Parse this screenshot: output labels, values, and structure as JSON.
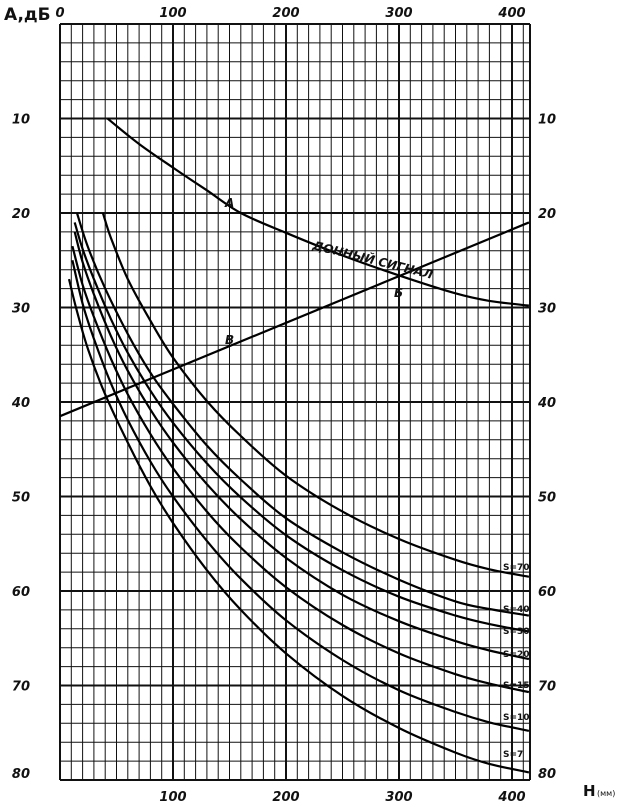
{
  "chart_data": {
    "type": "line",
    "ylabel": "A,дБ",
    "xlabel": "H",
    "xlabel_unit": "(мм)",
    "xlim": [
      0,
      400
    ],
    "ylim": [
      0,
      80
    ],
    "y_inverted": true,
    "grid": true,
    "top_ticks": [
      "0",
      "100",
      "200",
      "300",
      "400"
    ],
    "bottom_ticks": [
      "100",
      "200",
      "300",
      "400"
    ],
    "left_ticks": [
      "10",
      "20",
      "30",
      "40",
      "50",
      "60",
      "70",
      "80"
    ],
    "right_ticks": [
      "10",
      "20",
      "30",
      "40",
      "50",
      "60",
      "70",
      "80"
    ],
    "reference_curve": {
      "label_A": "A",
      "label_B": "Б",
      "text": "ДОННЫЙ СИГНАЛ",
      "x": [
        42,
        70,
        100,
        130,
        160,
        200,
        250,
        300,
        350,
        380,
        415
      ],
      "y": [
        10,
        12.7,
        15.2,
        17.6,
        20,
        22.1,
        24.5,
        26.6,
        28.5,
        29.3,
        29.8
      ]
    },
    "straight_line": {
      "label": "В",
      "x": [
        0,
        415
      ],
      "y": [
        41.5,
        21
      ]
    },
    "series": [
      {
        "name": "S=70",
        "x": [
          38,
          45,
          60,
          80,
          100,
          130,
          160,
          200,
          250,
          300,
          350,
          380,
          415
        ],
        "y": [
          20,
          22.6,
          27,
          31.4,
          35.3,
          39.9,
          43.6,
          47.8,
          51.6,
          54.5,
          56.7,
          57.7,
          58.5
        ]
      },
      {
        "name": "S=40",
        "x": [
          15,
          25,
          40,
          60,
          80,
          100,
          130,
          160,
          200,
          250,
          300,
          350,
          380,
          415
        ],
        "y": [
          20,
          23.7,
          28,
          32.8,
          36.9,
          40.2,
          44.6,
          48.2,
          52.3,
          55.9,
          58.8,
          61.1,
          61.9,
          62.6
        ]
      },
      {
        "name": "S=30",
        "x": [
          13,
          20,
          30,
          45,
          60,
          80,
          100,
          130,
          160,
          200,
          250,
          300,
          350,
          380,
          415
        ],
        "y": [
          21,
          23.8,
          27,
          31.2,
          34.8,
          38.8,
          42.2,
          46.5,
          50.1,
          54.1,
          57.8,
          60.6,
          62.6,
          63.5,
          64.3
        ]
      },
      {
        "name": "S=20",
        "x": [
          13,
          20,
          30,
          45,
          60,
          80,
          100,
          130,
          160,
          200,
          250,
          300,
          350,
          380,
          415
        ],
        "y": [
          22,
          25.2,
          28.6,
          33,
          36.7,
          40.8,
          44.3,
          48.7,
          52.4,
          56.5,
          60.4,
          63.2,
          65.3,
          66.3,
          67.2
        ]
      },
      {
        "name": "S=15",
        "x": [
          11,
          20,
          30,
          45,
          60,
          80,
          100,
          130,
          160,
          200,
          250,
          300,
          350,
          380,
          415
        ],
        "y": [
          23.5,
          27.6,
          31,
          35.4,
          39.2,
          43.4,
          47,
          51.6,
          55.4,
          59.6,
          63.6,
          66.6,
          68.8,
          69.8,
          70.7
        ]
      },
      {
        "name": "S=10",
        "x": [
          11,
          20,
          30,
          45,
          60,
          80,
          100,
          130,
          160,
          200,
          250,
          300,
          350,
          380,
          415
        ],
        "y": [
          25,
          29.6,
          33.3,
          38,
          41.9,
          46.3,
          50,
          54.7,
          58.7,
          63.1,
          67.3,
          70.5,
          72.8,
          73.9,
          74.8
        ]
      },
      {
        "name": "S=7",
        "x": [
          8,
          15,
          25,
          40,
          60,
          80,
          100,
          130,
          160,
          200,
          250,
          300,
          350,
          380,
          415
        ],
        "y": [
          27,
          30.4,
          34.5,
          39.2,
          44.3,
          48.9,
          52.8,
          57.8,
          62,
          66.6,
          71.1,
          74.5,
          77.1,
          78.3,
          79.2
        ]
      }
    ]
  }
}
